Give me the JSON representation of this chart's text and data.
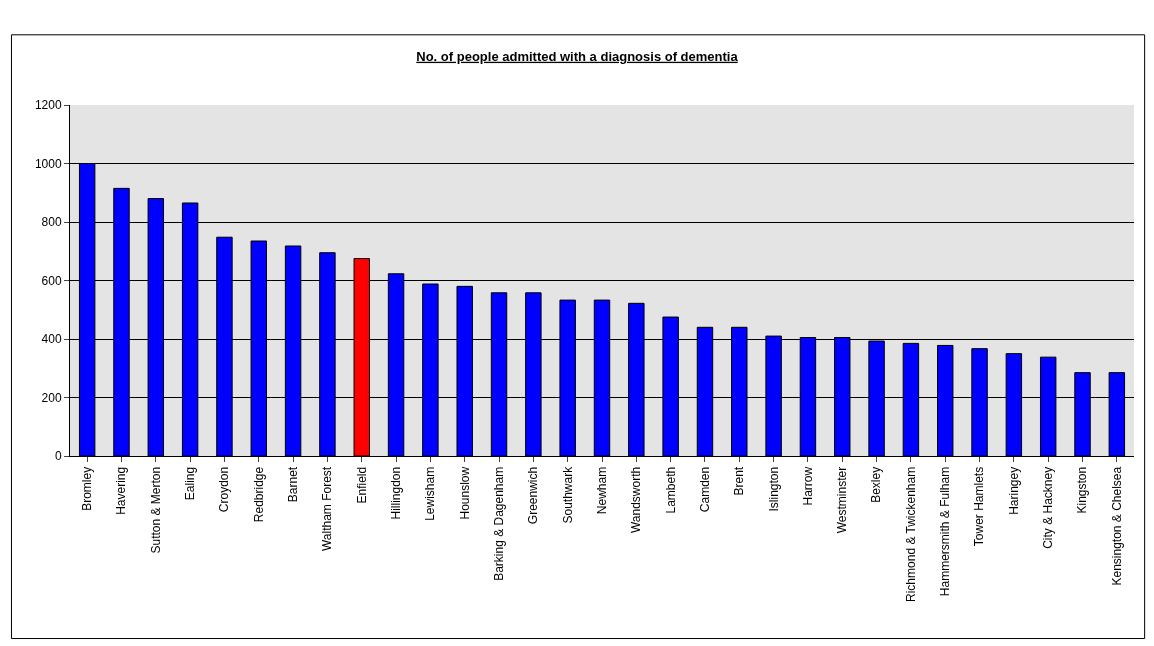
{
  "chart_data": {
    "type": "bar",
    "title": "No. of people admitted with a diagnosis of dementia",
    "categories": [
      "Bromley",
      "Havering",
      "Sutton & Merton",
      "Ealing",
      "Croydon",
      "Redbridge",
      "Barnet",
      "Waltham Forest",
      "Enfield",
      "Hillingdon",
      "Lewisham",
      "Hounslow",
      "Barking & Dagenham",
      "Greenwich",
      "Southwark",
      "Newham",
      "Wandsworth",
      "Lambeth",
      "Camden",
      "Brent",
      "Islington",
      "Harrow",
      "Westminster",
      "Bexley",
      "Richmond & Twickenham",
      "Hammersmith & Fulham",
      "Tower Hamlets",
      "Haringey",
      "City & Hackney",
      "Kingston",
      "Kensington & Chelsea"
    ],
    "values": [
      1000,
      915,
      880,
      865,
      748,
      735,
      718,
      695,
      675,
      623,
      588,
      580,
      558,
      558,
      533,
      533,
      522,
      475,
      440,
      440,
      410,
      405,
      405,
      393,
      385,
      378,
      367,
      350,
      338,
      285,
      285
    ],
    "colors": [
      "#0000ff",
      "#0000ff",
      "#0000ff",
      "#0000ff",
      "#0000ff",
      "#0000ff",
      "#0000ff",
      "#0000ff",
      "#ff0000",
      "#0000ff",
      "#0000ff",
      "#0000ff",
      "#0000ff",
      "#0000ff",
      "#0000ff",
      "#0000ff",
      "#0000ff",
      "#0000ff",
      "#0000ff",
      "#0000ff",
      "#0000ff",
      "#0000ff",
      "#0000ff",
      "#0000ff",
      "#0000ff",
      "#0000ff",
      "#0000ff",
      "#0000ff",
      "#0000ff",
      "#0000ff",
      "#0000ff"
    ],
    "ylim": [
      0,
      1200
    ],
    "yticks": [
      0,
      200,
      400,
      600,
      800,
      1000,
      1200
    ],
    "grid": "y"
  }
}
